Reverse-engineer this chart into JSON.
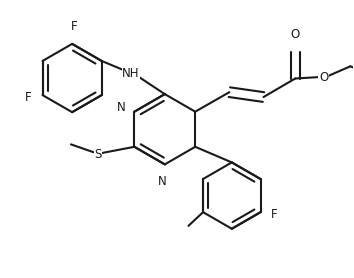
{
  "bg_color": "#ffffff",
  "line_color": "#1a1a1a",
  "line_width": 1.5,
  "font_size": 8.5,
  "figsize": [
    3.54,
    2.78
  ],
  "dpi": 100,
  "xlim": [
    0.0,
    7.2
  ],
  "ylim": [
    0.0,
    5.6
  ]
}
